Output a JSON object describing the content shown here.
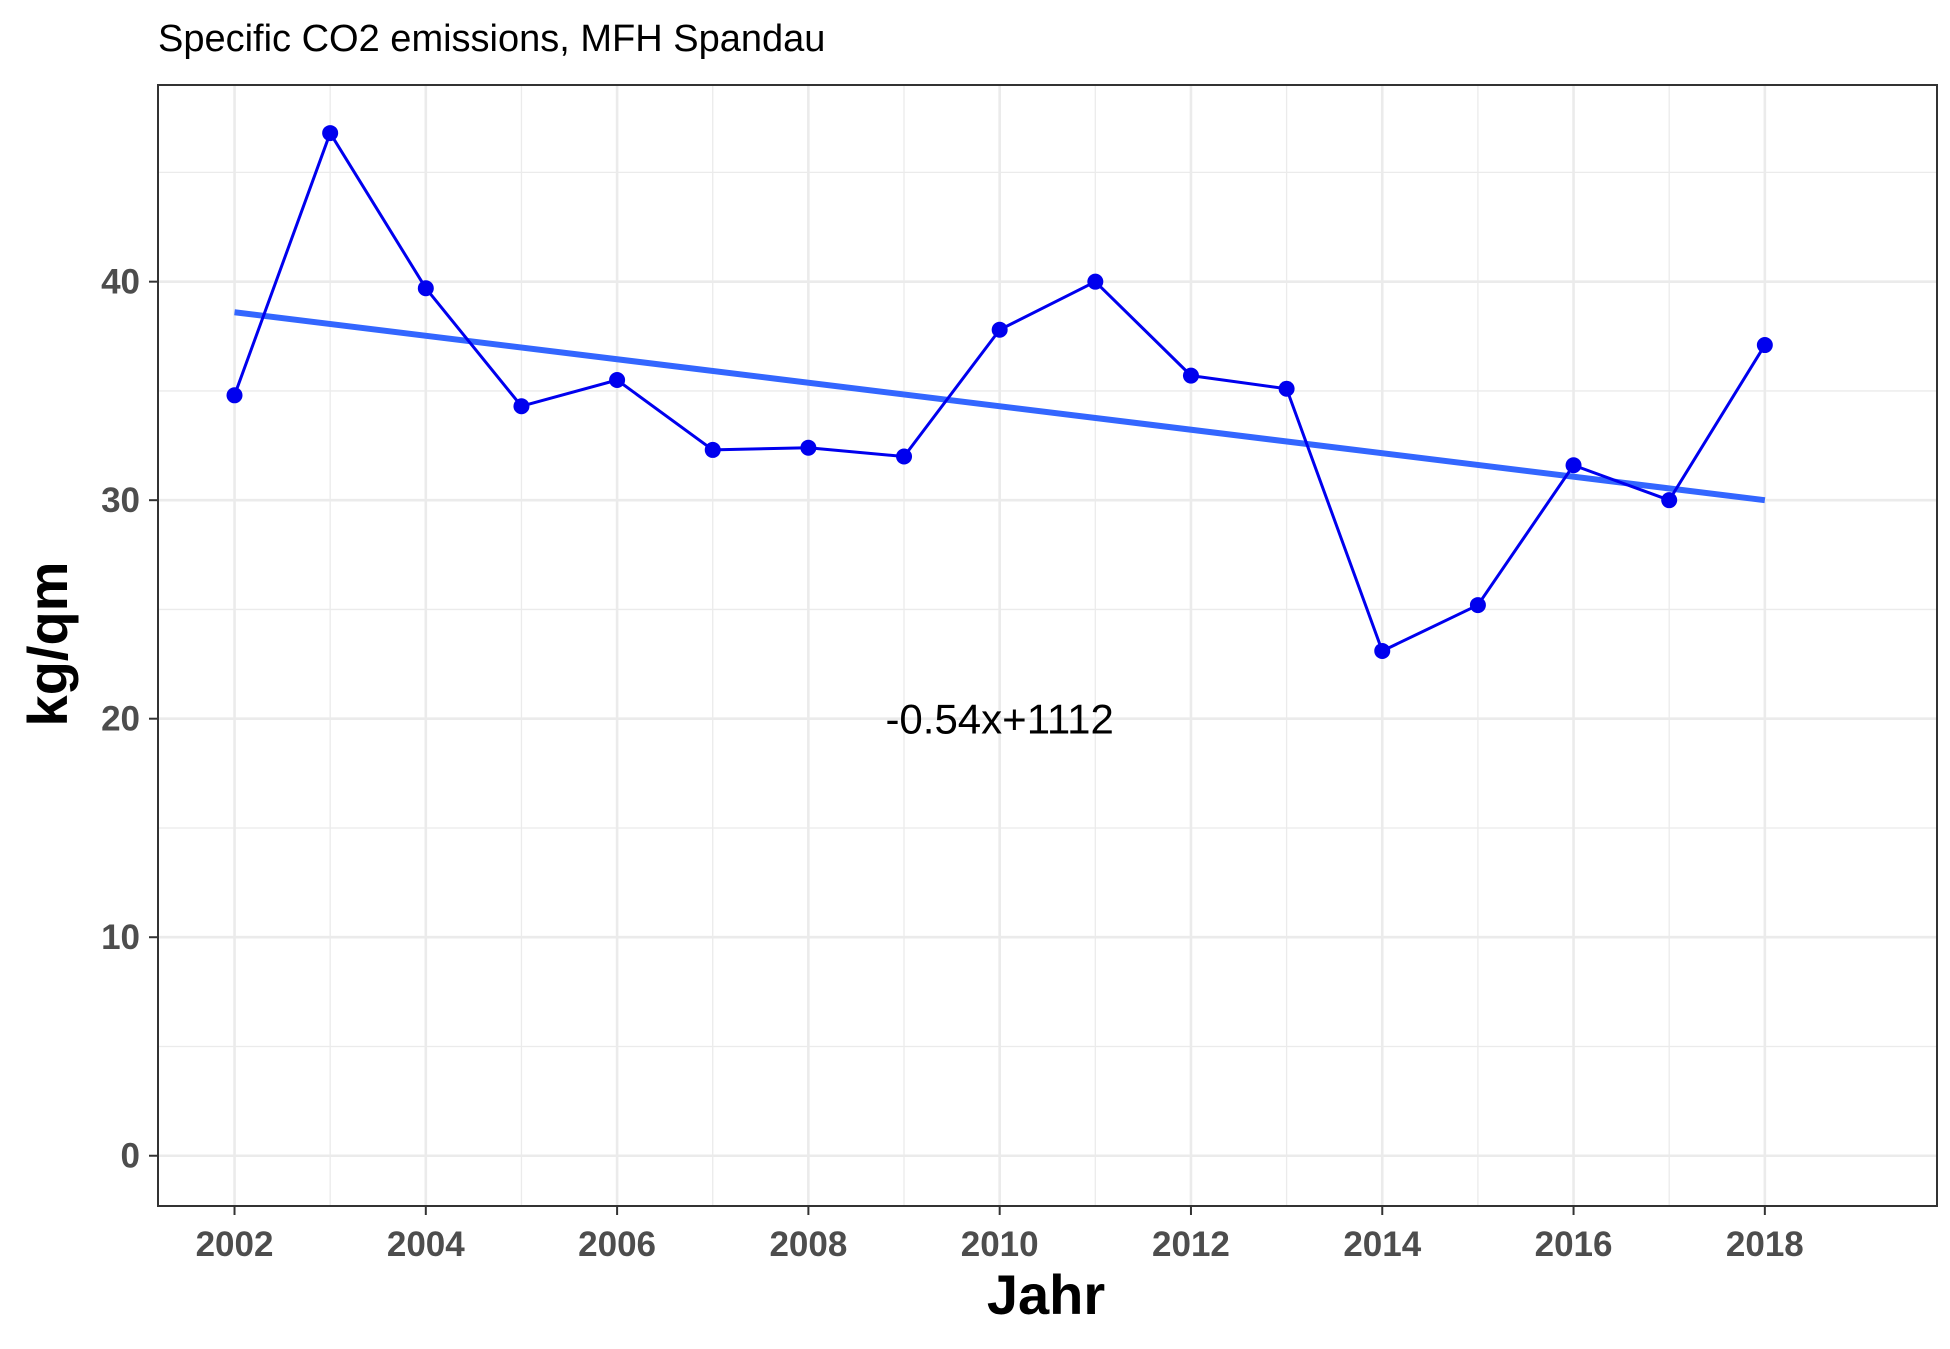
{
  "chart_data": {
    "type": "line",
    "title": "Specific CO2 emissions, MFH Spandau",
    "xlabel": "Jahr",
    "ylabel": "kg/qm",
    "xlim": [
      2001.2,
      2019.8
    ],
    "ylim": [
      -2.3,
      49
    ],
    "x_ticks": [
      2002,
      2004,
      2006,
      2008,
      2010,
      2012,
      2014,
      2016,
      2018
    ],
    "x_tick_labels": [
      "2002",
      "2004",
      "2006",
      "2008",
      "2010",
      "2012",
      "2014",
      "2016",
      "2018"
    ],
    "y_ticks": [
      0,
      10,
      20,
      30,
      40
    ],
    "y_tick_labels": [
      "0",
      "10",
      "20",
      "30",
      "40"
    ],
    "grid": true,
    "series": [
      {
        "color": "#0000ee",
        "x": [
          2002,
          2003,
          2004,
          2005,
          2006,
          2007,
          2008,
          2009,
          2010,
          2011,
          2012,
          2013,
          2014,
          2015,
          2016,
          2017,
          2018
        ],
        "y": [
          34.8,
          46.8,
          39.7,
          34.3,
          35.5,
          32.3,
          32.4,
          32.0,
          37.8,
          40.0,
          35.7,
          35.1,
          23.1,
          25.2,
          31.6,
          30.0,
          37.1
        ]
      }
    ],
    "trend_line": {
      "color": "#3366ff",
      "x": [
        2002,
        2018
      ],
      "y": [
        38.6,
        30.0
      ]
    },
    "annotation": {
      "text": "-0.54x+1112",
      "x": 2010,
      "y": 20
    }
  }
}
